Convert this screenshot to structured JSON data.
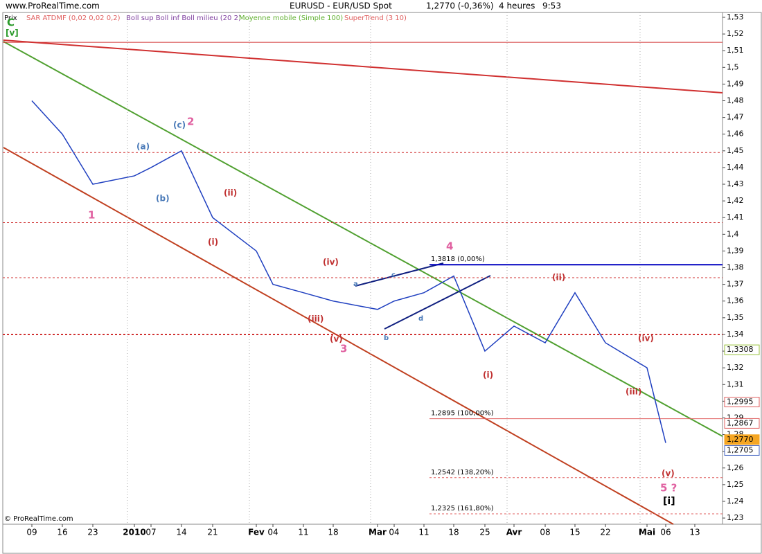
{
  "header": {
    "site": "www.ProRealTime.com",
    "instrument": "EURUSD - EUR/USD Spot",
    "quote": "1,2770 (-0,36%)",
    "period": "4 heures",
    "time": "9:53",
    "copyright": "© ProRealTime.com"
  },
  "indicators": [
    {
      "label": "SAR ATDMF (0,02 0,02 0,2)",
      "color": "#e06060"
    },
    {
      "label": "Boll sup Boll inf Boll milieu (20 2)",
      "color": "#8040a0"
    },
    {
      "label": "Moyenne mobile (Simple 100)",
      "color": "#60b030"
    },
    {
      "label": "SuperTrend (3 10)",
      "color": "#e06060"
    }
  ],
  "chart_data": {
    "type": "line",
    "y_label": "Prix",
    "categories": [
      "09",
      "16",
      "23",
      "2010",
      "07",
      "14",
      "21",
      "Fev",
      "04",
      "11",
      "18",
      "Mar",
      "04",
      "11",
      "18",
      "25",
      "Avr",
      "08",
      "15",
      "22",
      "Mai",
      "06",
      "13"
    ],
    "values": [
      1.48,
      1.46,
      1.43,
      1.435,
      1.44,
      1.45,
      1.41,
      1.39,
      1.37,
      1.365,
      1.36,
      1.355,
      1.36,
      1.365,
      1.375,
      1.33,
      1.345,
      1.335,
      1.365,
      1.335,
      1.32,
      1.275,
      null
    ],
    "color": "#2040c0",
    "ylim": [
      1.2263,
      1.5329
    ],
    "yticks": [
      {
        "value": 1.23,
        "label": "1,23"
      },
      {
        "value": 1.24,
        "label": "1,24"
      },
      {
        "value": 1.25,
        "label": "1,25"
      },
      {
        "value": 1.26,
        "label": "1,26"
      },
      {
        "value": 1.27,
        "label": "1,27"
      },
      {
        "value": 1.28,
        "label": "1,28"
      },
      {
        "value": 1.29,
        "label": "1,29"
      },
      {
        "value": 1.3,
        "label": "1,3"
      },
      {
        "value": 1.31,
        "label": "1,31"
      },
      {
        "value": 1.32,
        "label": "1,32"
      },
      {
        "value": 1.33,
        "label": "1,33"
      },
      {
        "value": 1.34,
        "label": "1,34"
      },
      {
        "value": 1.35,
        "label": "1,35"
      },
      {
        "value": 1.36,
        "label": "1,36"
      },
      {
        "value": 1.37,
        "label": "1,37"
      },
      {
        "value": 1.38,
        "label": "1,38"
      },
      {
        "value": 1.39,
        "label": "1,39"
      },
      {
        "value": 1.4,
        "label": "1,4"
      },
      {
        "value": 1.41,
        "label": "1,41"
      },
      {
        "value": 1.42,
        "label": "1,42"
      },
      {
        "value": 1.43,
        "label": "1,43"
      },
      {
        "value": 1.44,
        "label": "1,44"
      },
      {
        "value": 1.45,
        "label": "1,45"
      },
      {
        "value": 1.46,
        "label": "1,46"
      },
      {
        "value": 1.47,
        "label": "1,47"
      },
      {
        "value": 1.48,
        "label": "1,48"
      },
      {
        "value": 1.49,
        "label": "1,49"
      },
      {
        "value": 1.5,
        "label": "1,5"
      },
      {
        "value": 1.51,
        "label": "1,51"
      },
      {
        "value": 1.52,
        "label": "1,52"
      },
      {
        "value": 1.53,
        "label": "1,53"
      }
    ],
    "fib_levels": [
      {
        "value": 1.3818,
        "label": "1,3818 (0,00%)",
        "color": "#0000c0"
      },
      {
        "value": 1.2895,
        "label": "1,2895 (100,00%)",
        "color": "#e06060"
      },
      {
        "value": 1.2542,
        "label": "1,2542 (138,20%)",
        "color": "#e06060"
      },
      {
        "value": 1.2325,
        "label": "1,2325 (161,80%)",
        "color": "#e06060"
      }
    ],
    "dashed_levels": [
      1.449,
      1.407,
      1.374,
      1.34
    ],
    "solid_levels": [
      1.515
    ],
    "level_color": "#d03030",
    "price_tags": [
      {
        "value": 1.3308,
        "label": "1,3308",
        "color": "#9ac23c"
      },
      {
        "value": 1.2995,
        "label": "1,2995",
        "color": "#e06060"
      },
      {
        "value": 1.2867,
        "label": "1,2867",
        "color": "#e06060"
      },
      {
        "value": 1.277,
        "label": "1,2770",
        "color": "#f5a623"
      },
      {
        "value": 1.2705,
        "label": "1,2705",
        "color": "#4060c0"
      }
    ]
  },
  "wave_labels": [
    "C",
    "[v]",
    "(c)",
    "2",
    "(a)",
    "(b)",
    "1",
    "(ii)",
    "(i)",
    "(iv)",
    "(iii)",
    "(v)",
    "3",
    "4",
    "(i)",
    "(ii)",
    "(iv)",
    "(iii)",
    "(v)",
    "5 ?",
    "[i]",
    "a",
    "c",
    "b",
    "d"
  ]
}
